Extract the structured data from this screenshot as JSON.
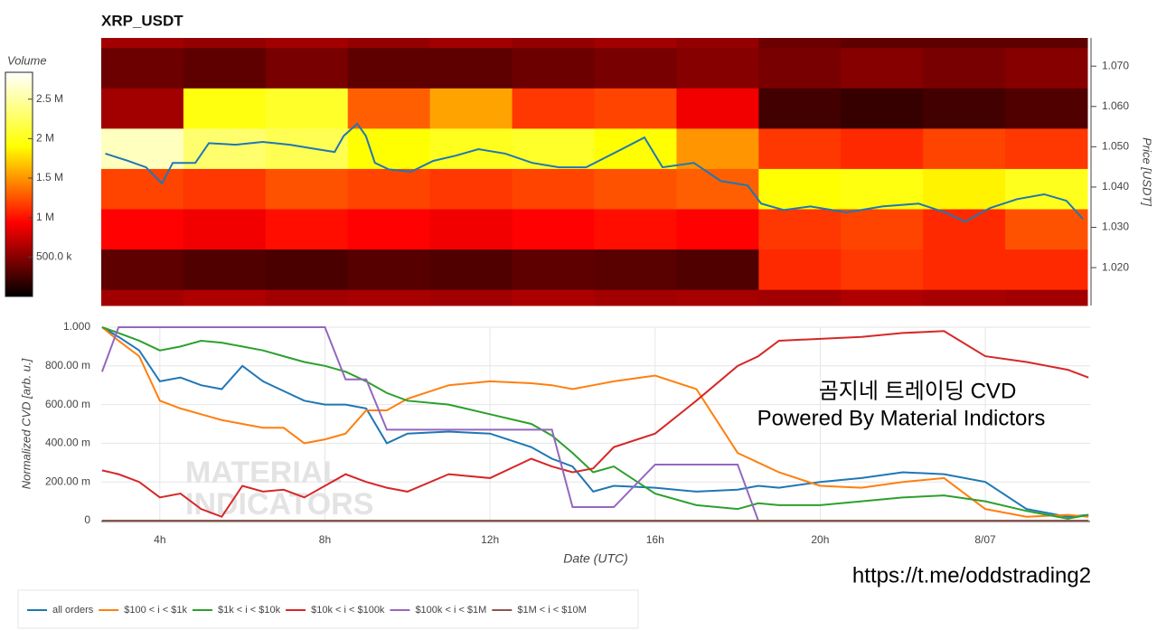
{
  "chart_data": [
    {
      "type": "heatmap",
      "title": "XRP_USDT",
      "colorbar_title": "Volume",
      "zlim": [
        0,
        2840000
      ],
      "zticks": [
        {
          "value": 500000,
          "label": "500.0 k"
        },
        {
          "value": 1000000,
          "label": "1 M"
        },
        {
          "value": 1500000,
          "label": "1.5 M"
        },
        {
          "value": 2000000,
          "label": "2 M"
        },
        {
          "value": 2500000,
          "label": "2.5 M"
        }
      ],
      "ylabel": "Price [USDT]",
      "xlim": [
        2.54,
        26.54
      ],
      "ylim": [
        1.0106,
        1.077
      ],
      "yticks": [
        {
          "value": 1.02,
          "label": "1.020"
        },
        {
          "value": 1.03,
          "label": "1.030"
        },
        {
          "value": 1.04,
          "label": "1.040"
        },
        {
          "value": 1.05,
          "label": "1.050"
        },
        {
          "value": 1.06,
          "label": "1.060"
        },
        {
          "value": 1.07,
          "label": "1.070"
        }
      ],
      "x_bins": [
        2.54,
        4.54,
        6.54,
        8.54,
        10.54,
        12.54,
        14.54,
        16.54,
        18.54,
        20.54,
        22.54,
        24.54,
        26.54
      ],
      "y_bins": [
        1.0106,
        1.0146,
        1.0246,
        1.0346,
        1.0446,
        1.0546,
        1.0646,
        1.0746,
        1.077
      ],
      "z": [
        [
          600000,
          650000,
          600000,
          620000,
          600000,
          640000,
          600000,
          620000,
          600000,
          650000,
          620000,
          600000
        ],
        [
          350000,
          300000,
          280000,
          320000,
          300000,
          350000,
          330000,
          300000,
          1100000,
          1150000,
          1100000,
          1100000
        ],
        [
          950000,
          900000,
          1000000,
          950000,
          900000,
          950000,
          1000000,
          950000,
          1150000,
          1200000,
          1100000,
          1250000
        ],
        [
          1200000,
          1150000,
          1250000,
          1200000,
          1150000,
          1200000,
          1250000,
          1300000,
          1900000,
          1950000,
          1850000,
          2000000
        ],
        [
          2600000,
          2300000,
          2200000,
          1900000,
          2000000,
          2050000,
          1900000,
          1500000,
          1150000,
          1100000,
          1200000,
          1150000
        ],
        [
          600000,
          1950000,
          2050000,
          1300000,
          1550000,
          1150000,
          1200000,
          900000,
          250000,
          200000,
          250000,
          300000
        ],
        [
          400000,
          350000,
          450000,
          350000,
          350000,
          400000,
          450000,
          500000,
          450000,
          500000,
          450000,
          500000
        ],
        [
          600000,
          550000,
          600000,
          550000,
          600000,
          550000,
          600000,
          550000,
          400000,
          350000,
          350000,
          350000
        ]
      ],
      "line": {
        "color": "#1f77b4",
        "x": [
          2.64,
          3.19,
          3.63,
          4.02,
          4.28,
          4.83,
          5.16,
          5.81,
          6.47,
          7.13,
          7.78,
          8.22,
          8.44,
          8.77,
          8.98,
          9.2,
          9.53,
          10.08,
          10.62,
          11.17,
          11.72,
          12.37,
          13.03,
          13.68,
          14.34,
          15.21,
          15.76,
          16.2,
          16.96,
          17.62,
          18.27,
          18.6,
          19.15,
          19.8,
          20.68,
          21.55,
          22.43,
          23.08,
          23.56,
          24.17,
          24.83,
          25.49,
          26.03,
          26.43
        ],
        "values": [
          1.0483,
          1.0465,
          1.0449,
          1.0409,
          1.046,
          1.046,
          1.0509,
          1.0505,
          1.0512,
          1.0505,
          1.0494,
          1.0487,
          1.0527,
          1.0557,
          1.0527,
          1.046,
          1.0444,
          1.0438,
          1.0465,
          1.0478,
          1.0494,
          1.0483,
          1.046,
          1.0449,
          1.0449,
          1.0494,
          1.0523,
          1.0449,
          1.046,
          1.0415,
          1.0404,
          1.0359,
          1.0343,
          1.0352,
          1.0337,
          1.0352,
          1.0359,
          1.0337,
          1.0314,
          1.0348,
          1.037,
          1.0382,
          1.0366,
          1.0321
        ]
      }
    },
    {
      "type": "line",
      "xlabel": "Date (UTC)",
      "ylabel": "Normalized CVD [arb. u.]",
      "grid": true,
      "xlim": [
        2.58,
        26.54
      ],
      "ylim": [
        0,
        1
      ],
      "xticks": [
        {
          "value": 4,
          "label": "4h"
        },
        {
          "value": 8,
          "label": "8h"
        },
        {
          "value": 12,
          "label": "12h"
        },
        {
          "value": 16,
          "label": "16h"
        },
        {
          "value": 20,
          "label": "20h"
        },
        {
          "value": 24,
          "label": "8/07"
        }
      ],
      "yticks": [
        0,
        {
          "value": 0.2,
          "label": "200.00 m"
        },
        {
          "value": 0.4,
          "label": "400.00 m"
        },
        {
          "value": 0.6,
          "label": "600.00 m"
        },
        {
          "value": 0.8,
          "label": "800.00 m"
        },
        {
          "value": 1,
          "label": "1.000"
        }
      ],
      "annotations": [
        "곰지네 트레이딩 CVD",
        "Powered By Material Indictors",
        "https://t.me/oddstrading2"
      ],
      "watermark": [
        "MATERIAL",
        "INDICATORS"
      ],
      "x": [
        2.6,
        3.0,
        3.5,
        4.0,
        4.5,
        5.0,
        5.5,
        6.0,
        6.5,
        7.0,
        7.5,
        8.0,
        8.5,
        9.0,
        9.5,
        10,
        11,
        12,
        13,
        13.5,
        14,
        14.5,
        15,
        16,
        17,
        18,
        18.5,
        19,
        20,
        21,
        22,
        23,
        24,
        25,
        26,
        26.5
      ],
      "series": [
        {
          "name": "all orders",
          "color": "#1f77b4",
          "values": [
            1.0,
            0.95,
            0.88,
            0.72,
            0.74,
            0.7,
            0.68,
            0.8,
            0.72,
            0.67,
            0.62,
            0.6,
            0.6,
            0.58,
            0.4,
            0.45,
            0.46,
            0.45,
            0.38,
            0.32,
            0.28,
            0.15,
            0.18,
            0.17,
            0.15,
            0.16,
            0.18,
            0.17,
            0.2,
            0.22,
            0.25,
            0.24,
            0.2,
            0.06,
            0.02,
            0.03
          ]
        },
        {
          "name": "$100 < i < $1k",
          "color": "#ff7f0e",
          "values": [
            1.0,
            0.93,
            0.85,
            0.62,
            0.58,
            0.55,
            0.52,
            0.5,
            0.48,
            0.48,
            0.4,
            0.42,
            0.45,
            0.57,
            0.57,
            0.63,
            0.7,
            0.72,
            0.71,
            0.7,
            0.68,
            0.7,
            0.72,
            0.75,
            0.68,
            0.35,
            0.3,
            0.25,
            0.18,
            0.17,
            0.2,
            0.22,
            0.06,
            0.02,
            0.03,
            0.02
          ]
        },
        {
          "name": "$1k < i < $10k",
          "color": "#2ca02c",
          "values": [
            1.0,
            0.97,
            0.93,
            0.88,
            0.9,
            0.93,
            0.92,
            0.9,
            0.88,
            0.85,
            0.82,
            0.8,
            0.77,
            0.72,
            0.66,
            0.62,
            0.6,
            0.55,
            0.5,
            0.44,
            0.35,
            0.25,
            0.28,
            0.14,
            0.08,
            0.06,
            0.09,
            0.08,
            0.08,
            0.1,
            0.12,
            0.13,
            0.1,
            0.05,
            0.01,
            0.03
          ]
        },
        {
          "name": "$10k < i < $100k",
          "color": "#d62728",
          "values": [
            0.26,
            0.24,
            0.2,
            0.12,
            0.14,
            0.06,
            0.02,
            0.18,
            0.15,
            0.16,
            0.12,
            0.18,
            0.24,
            0.2,
            0.17,
            0.15,
            0.24,
            0.22,
            0.32,
            0.28,
            0.25,
            0.27,
            0.38,
            0.45,
            0.62,
            0.8,
            0.85,
            0.93,
            0.94,
            0.95,
            0.97,
            0.98,
            0.85,
            0.82,
            0.78,
            0.74
          ]
        },
        {
          "name": "$100k < i < $1M",
          "color": "#9467bd",
          "values": [
            0.77,
            1.0,
            1.0,
            1.0,
            1.0,
            1.0,
            1.0,
            1.0,
            1.0,
            1.0,
            1.0,
            1.0,
            0.73,
            0.73,
            0.47,
            0.47,
            0.47,
            0.47,
            0.47,
            0.47,
            0.07,
            0.07,
            0.07,
            0.29,
            0.29,
            0.29,
            0,
            0,
            0,
            0,
            0,
            0,
            0,
            0,
            0,
            0
          ]
        },
        {
          "name": "$1M < i < $10M",
          "color": "#8c564b",
          "values": [
            0,
            0,
            0,
            0,
            0,
            0,
            0,
            0,
            0,
            0,
            0,
            0,
            0,
            0,
            0,
            0,
            0,
            0,
            0,
            0,
            0,
            0,
            0,
            0,
            0,
            0,
            0,
            0,
            0,
            0,
            0,
            0,
            0,
            0,
            0,
            0
          ]
        }
      ]
    }
  ]
}
